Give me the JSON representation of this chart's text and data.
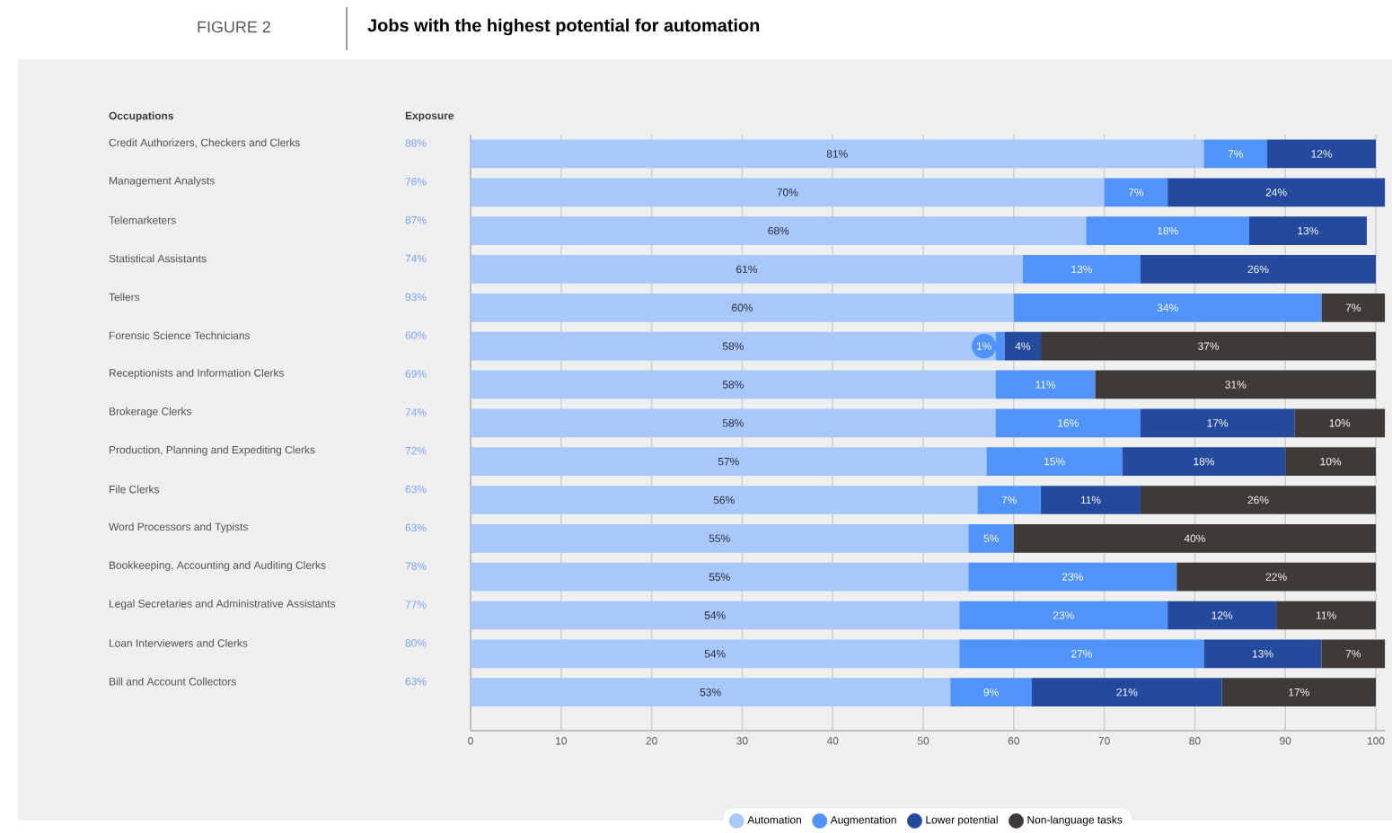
{
  "chart_data": {
    "type": "bar",
    "orientation": "horizontal",
    "stacked": true,
    "title": "Jobs with the highest potential for automation",
    "ylabel": "Occupations",
    "annotations": [
      "FIGURE 2",
      "Exposure",
      "88%",
      "76%",
      "87%",
      "74%",
      "93%",
      "60%",
      "69%",
      "74%",
      "72%",
      "63%",
      "63%",
      "78%",
      "77%",
      "80%",
      "63%"
    ],
    "categories": [
      "Credit Authorizers, Checkers and Clerks",
      "Management Analysts",
      "Telemarketers",
      "Statistical Assistants",
      "Tellers",
      "Forensic Science Technicians",
      "Receptionists and Information Clerks",
      "Brokerage Clerks",
      "Production, Planning and Expediting Clerks",
      "File Clerks",
      "Word Processors and Typists",
      "Bookkeeping, Accounting and Auditing Clerks",
      "Legal Secretaries and Administrative Assistants",
      "Loan Interviewers and Clerks",
      "Bill and Account Collectors"
    ],
    "series": [
      {
        "name": "Automation",
        "color": "#a8c8fc",
        "values": [
          81,
          70,
          68,
          61,
          60,
          58,
          58,
          58,
          57,
          56,
          55,
          55,
          54,
          54,
          53
        ],
        "value_labels": [
          "81%",
          "70%",
          "68%",
          "61%",
          "60%",
          "58%",
          "58%",
          "58%",
          "57%",
          "56%",
          "55%",
          "55%",
          "54%",
          "54%",
          "53%"
        ]
      },
      {
        "name": "Augmentation",
        "color": "#4f93fb",
        "values": [
          7,
          7,
          18,
          13,
          34,
          1,
          11,
          16,
          15,
          7,
          5,
          23,
          23,
          27,
          9
        ],
        "value_labels": [
          "7%",
          "7%",
          "18%",
          "13%",
          "34%",
          "1%",
          "11%",
          "16%",
          "15%",
          "7%",
          "5%",
          "23%",
          "23%",
          "27%",
          "9%"
        ]
      },
      {
        "name": "Lower potential",
        "color": "#244a9e",
        "values": [
          12,
          24,
          13,
          26,
          null,
          4,
          null,
          17,
          18,
          11,
          null,
          null,
          12,
          13,
          21
        ],
        "value_labels": [
          "12%",
          "24%",
          "13%",
          "26%",
          null,
          "4%",
          null,
          "17%",
          "18%",
          "11%",
          null,
          null,
          "12%",
          "13%",
          "21%"
        ]
      },
      {
        "name": "Non-language tasks",
        "color": "#3d3a37",
        "values": [
          null,
          null,
          null,
          null,
          7,
          37,
          31,
          10,
          10,
          26,
          40,
          22,
          11,
          7,
          17
        ],
        "value_labels": [
          null,
          null,
          null,
          null,
          "7%",
          "37%",
          "31%",
          "10%",
          "10%",
          "26%",
          "40%",
          "22%",
          "11%",
          "7%",
          "17%"
        ]
      }
    ],
    "xlim": [
      0,
      101
    ],
    "xticks": [
      0,
      10,
      20,
      30,
      40,
      50,
      60,
      70,
      80,
      90,
      100
    ],
    "grid": "x",
    "legend": "bottom"
  }
}
